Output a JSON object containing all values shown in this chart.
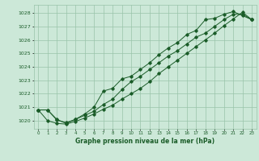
{
  "title": "Graphe pression niveau de la mer (hPa)",
  "bg_color": "#cce8d8",
  "grid_color": "#99c4aa",
  "line_color": "#1a5c28",
  "xlim": [
    -0.5,
    23.5
  ],
  "ylim": [
    1019.4,
    1028.6
  ],
  "yticks": [
    1020,
    1021,
    1022,
    1023,
    1024,
    1025,
    1026,
    1027,
    1028
  ],
  "xticks": [
    0,
    1,
    2,
    3,
    4,
    5,
    6,
    7,
    8,
    9,
    10,
    11,
    12,
    13,
    14,
    15,
    16,
    17,
    18,
    19,
    20,
    21,
    22,
    23
  ],
  "line1": [
    [
      0,
      1020.8
    ],
    [
      1,
      1020.8
    ],
    [
      2,
      1020.1
    ],
    [
      3,
      1019.8
    ],
    [
      4,
      1020.1
    ],
    [
      5,
      1020.4
    ],
    [
      6,
      1020.7
    ],
    [
      7,
      1021.2
    ],
    [
      8,
      1021.6
    ],
    [
      9,
      1022.3
    ],
    [
      10,
      1022.9
    ],
    [
      11,
      1023.3
    ],
    [
      12,
      1023.8
    ],
    [
      13,
      1024.3
    ],
    [
      14,
      1024.8
    ],
    [
      15,
      1025.2
    ],
    [
      16,
      1025.7
    ],
    [
      17,
      1026.2
    ],
    [
      18,
      1026.5
    ],
    [
      19,
      1027.0
    ],
    [
      20,
      1027.5
    ],
    [
      21,
      1027.9
    ],
    [
      22,
      1027.9
    ],
    [
      23,
      1027.5
    ]
  ],
  "line2": [
    [
      0,
      1020.8
    ],
    [
      1,
      1020.8
    ],
    [
      2,
      1020.05
    ],
    [
      3,
      1019.85
    ],
    [
      4,
      1020.1
    ],
    [
      5,
      1020.5
    ],
    [
      6,
      1021.0
    ],
    [
      7,
      1022.2
    ],
    [
      8,
      1022.4
    ],
    [
      9,
      1023.1
    ],
    [
      10,
      1023.3
    ],
    [
      11,
      1023.8
    ],
    [
      12,
      1024.3
    ],
    [
      13,
      1024.9
    ],
    [
      14,
      1025.4
    ],
    [
      15,
      1025.8
    ],
    [
      16,
      1026.4
    ],
    [
      17,
      1026.7
    ],
    [
      18,
      1027.5
    ],
    [
      19,
      1027.6
    ],
    [
      20,
      1027.9
    ],
    [
      21,
      1028.1
    ],
    [
      22,
      1027.8
    ],
    [
      23,
      1027.5
    ]
  ],
  "line3": [
    [
      0,
      1020.8
    ],
    [
      1,
      1020.0
    ],
    [
      2,
      1019.8
    ],
    [
      3,
      1019.75
    ],
    [
      4,
      1019.95
    ],
    [
      5,
      1020.2
    ],
    [
      6,
      1020.5
    ],
    [
      7,
      1020.85
    ],
    [
      8,
      1021.15
    ],
    [
      9,
      1021.6
    ],
    [
      10,
      1022.0
    ],
    [
      11,
      1022.4
    ],
    [
      12,
      1022.9
    ],
    [
      13,
      1023.5
    ],
    [
      14,
      1024.0
    ],
    [
      15,
      1024.5
    ],
    [
      16,
      1025.0
    ],
    [
      17,
      1025.5
    ],
    [
      18,
      1026.0
    ],
    [
      19,
      1026.5
    ],
    [
      20,
      1027.05
    ],
    [
      21,
      1027.55
    ],
    [
      22,
      1028.05
    ],
    [
      23,
      1027.5
    ]
  ]
}
